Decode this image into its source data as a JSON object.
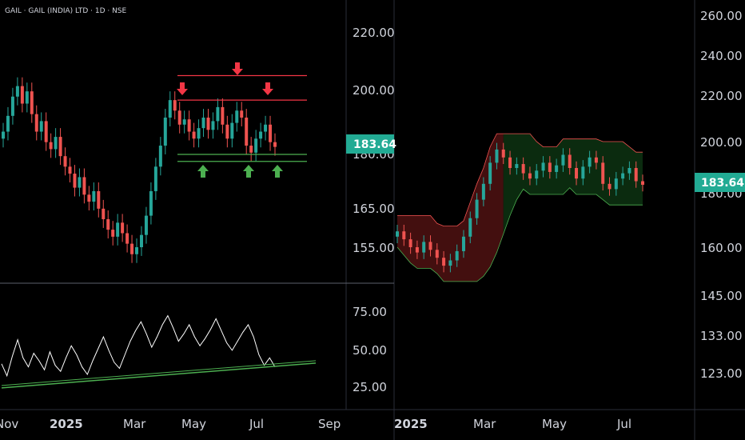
{
  "header": {
    "title": "GAIL · GAIL (INDIA) LTD · 1D · NSE"
  },
  "colors": {
    "up": "#26a69a",
    "down": "#ef5350",
    "resistance": "#f23645",
    "support": "#4caf50",
    "badge": "#22ab94",
    "rsi": "#ffffff",
    "cloud_red": "#5a1414",
    "cloud_green": "#0f3a14"
  },
  "left_chart": {
    "price_axis": [
      "220.00",
      "200.00",
      "180.00",
      "165.00",
      "155.00"
    ],
    "last_price": "183.64",
    "time_axis": [
      "Nov",
      "2025",
      "Mar",
      "May",
      "Jul",
      "Sep"
    ],
    "resistance_levels": [
      204.0,
      197.0
    ],
    "support_levels": [
      181.5,
      179.5
    ],
    "resistance_markers": [
      "down-arrow",
      "down-arrow",
      "down-arrow"
    ],
    "support_markers": [
      "up-arrow",
      "up-arrow",
      "up-arrow"
    ]
  },
  "rsi_pane": {
    "axis": [
      "75.00",
      "50.00",
      "25.00"
    ]
  },
  "right_chart": {
    "price_axis": [
      "260.00",
      "240.00",
      "220.00",
      "200.00",
      "180.00",
      "160.00",
      "145.00",
      "133.00",
      "123.00"
    ],
    "last_price": "183.64",
    "time_axis": [
      "2025",
      "Mar",
      "May",
      "Jul"
    ]
  },
  "chart_data": {
    "type": "candlestick",
    "close_series": [
      188.0,
      192.5,
      198.0,
      201.0,
      196.0,
      199.5,
      193.0,
      188.0,
      191.0,
      185.0,
      183.0,
      186.5,
      181.0,
      178.0,
      176.0,
      172.0,
      175.0,
      170.0,
      168.0,
      171.0,
      166.0,
      163.0,
      160.0,
      158.0,
      162.0,
      159.0,
      156.0,
      153.0,
      155.0,
      158.5,
      164.0,
      171.0,
      178.0,
      184.0,
      192.0,
      197.0,
      194.0,
      190.0,
      191.5,
      188.0,
      186.0,
      189.0,
      192.0,
      188.5,
      191.0,
      195.0,
      190.0,
      186.0,
      190.5,
      194.0,
      192.0,
      184.0,
      182.0,
      186.0,
      188.0,
      190.0,
      185.0,
      183.64
    ],
    "rsi_series": [
      40,
      32,
      45,
      56,
      44,
      38,
      47,
      42,
      36,
      48,
      39,
      35,
      44,
      52,
      46,
      38,
      33,
      42,
      50,
      58,
      49,
      41,
      37,
      46,
      55,
      62,
      68,
      60,
      51,
      58,
      66,
      72,
      64,
      55,
      60,
      66,
      58,
      52,
      57,
      63,
      70,
      62,
      54,
      49,
      55,
      61,
      66,
      58,
      46,
      39,
      44,
      38
    ],
    "rsi_trendline": [
      24.0,
      40.5
    ]
  }
}
